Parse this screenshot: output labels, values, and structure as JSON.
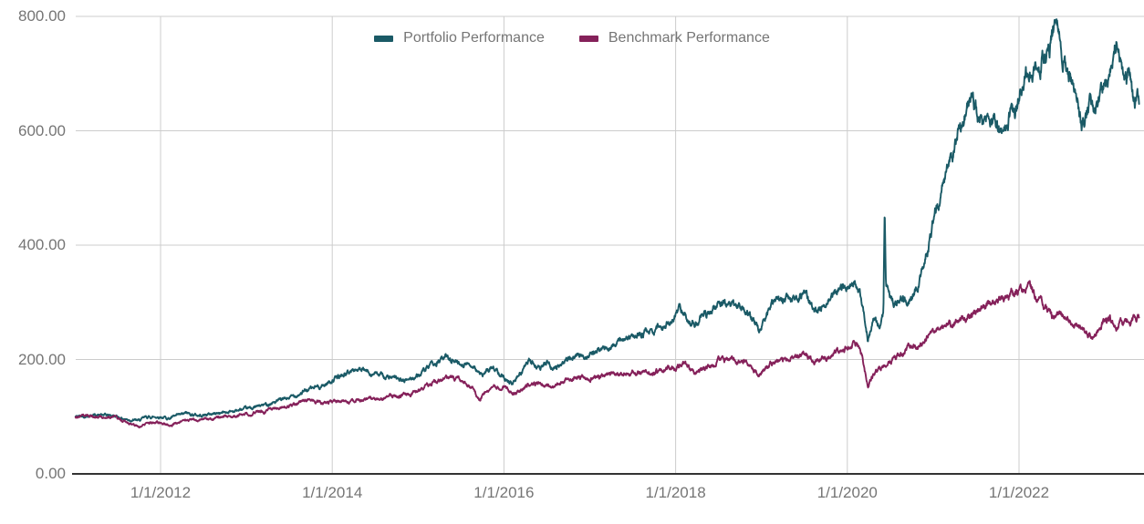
{
  "chart_data": {
    "type": "line",
    "title": "",
    "xlabel": "",
    "ylabel": "",
    "grid": true,
    "legend_position": "top-center",
    "background_color": "#ffffff",
    "grid_color": "#cccccc",
    "axis_line_color": "#333333",
    "text_color": "#757575",
    "y_axis": {
      "tick_labels": [
        "0.00",
        "200.00",
        "400.00",
        "600.00",
        "800.00"
      ],
      "tick_values": [
        0,
        200,
        400,
        600,
        800
      ],
      "range": [
        0,
        800
      ]
    },
    "x_axis": {
      "tick_labels": [
        "1/1/2012",
        "1/1/2014",
        "1/1/2016",
        "1/1/2018",
        "1/1/2020",
        "1/1/2022"
      ],
      "tick_years": [
        2012,
        2014,
        2016,
        2018,
        2020,
        2022
      ],
      "range_years": [
        2011.01,
        2023.4
      ]
    },
    "series": [
      {
        "name": "Portfolio Performance",
        "color": "#1A5A66",
        "keypoints": [
          [
            2011.01,
            100
          ],
          [
            2011.2,
            103
          ],
          [
            2011.45,
            102
          ],
          [
            2011.58,
            96
          ],
          [
            2011.75,
            93
          ],
          [
            2011.83,
            99
          ],
          [
            2012.0,
            100
          ],
          [
            2012.1,
            97
          ],
          [
            2012.3,
            106
          ],
          [
            2012.45,
            102
          ],
          [
            2012.6,
            105
          ],
          [
            2012.8,
            109
          ],
          [
            2013.0,
            113
          ],
          [
            2013.25,
            122
          ],
          [
            2013.5,
            133
          ],
          [
            2013.75,
            149
          ],
          [
            2013.9,
            155
          ],
          [
            2014.0,
            164
          ],
          [
            2014.27,
            183
          ],
          [
            2014.45,
            177
          ],
          [
            2014.7,
            167
          ],
          [
            2014.85,
            163
          ],
          [
            2015.0,
            172
          ],
          [
            2015.15,
            188
          ],
          [
            2015.33,
            205
          ],
          [
            2015.5,
            193
          ],
          [
            2015.65,
            190
          ],
          [
            2015.74,
            170
          ],
          [
            2015.85,
            186
          ],
          [
            2015.95,
            178
          ],
          [
            2016.1,
            157
          ],
          [
            2016.3,
            198
          ],
          [
            2016.42,
            185
          ],
          [
            2016.52,
            197
          ],
          [
            2016.57,
            184
          ],
          [
            2016.75,
            201
          ],
          [
            2016.95,
            207
          ],
          [
            2017.15,
            218
          ],
          [
            2017.4,
            235
          ],
          [
            2017.6,
            244
          ],
          [
            2017.8,
            255
          ],
          [
            2017.95,
            270
          ],
          [
            2018.05,
            288
          ],
          [
            2018.15,
            270
          ],
          [
            2018.22,
            262
          ],
          [
            2018.35,
            280
          ],
          [
            2018.55,
            300
          ],
          [
            2018.7,
            292
          ],
          [
            2018.8,
            296
          ],
          [
            2018.97,
            252
          ],
          [
            2019.15,
            300
          ],
          [
            2019.35,
            308
          ],
          [
            2019.5,
            316
          ],
          [
            2019.62,
            282
          ],
          [
            2019.8,
            310
          ],
          [
            2020.0,
            330
          ],
          [
            2020.1,
            336
          ],
          [
            2020.17,
            300
          ],
          [
            2020.24,
            234
          ],
          [
            2020.3,
            268
          ],
          [
            2020.38,
            258
          ],
          [
            2020.42,
            280
          ],
          [
            2020.435,
            465
          ],
          [
            2020.45,
            330
          ],
          [
            2020.55,
            295
          ],
          [
            2020.62,
            310
          ],
          [
            2020.7,
            300
          ],
          [
            2020.8,
            318
          ],
          [
            2020.88,
            360
          ],
          [
            2020.95,
            405
          ],
          [
            2021.05,
            470
          ],
          [
            2021.15,
            520
          ],
          [
            2021.25,
            570
          ],
          [
            2021.35,
            620
          ],
          [
            2021.42,
            660
          ],
          [
            2021.5,
            640
          ],
          [
            2021.58,
            600
          ],
          [
            2021.65,
            628
          ],
          [
            2021.72,
            610
          ],
          [
            2021.8,
            592
          ],
          [
            2021.88,
            630
          ],
          [
            2021.95,
            618
          ],
          [
            2022.0,
            650
          ],
          [
            2022.08,
            700
          ],
          [
            2022.15,
            690
          ],
          [
            2022.25,
            715
          ],
          [
            2022.35,
            742
          ],
          [
            2022.44,
            790
          ],
          [
            2022.52,
            730
          ],
          [
            2022.6,
            695
          ],
          [
            2022.68,
            650
          ],
          [
            2022.74,
            612
          ],
          [
            2022.82,
            650
          ],
          [
            2022.9,
            638
          ],
          [
            2022.98,
            672
          ],
          [
            2023.05,
            695
          ],
          [
            2023.12,
            750
          ],
          [
            2023.2,
            720
          ],
          [
            2023.28,
            692
          ],
          [
            2023.36,
            650
          ],
          [
            2023.4,
            655
          ]
        ]
      },
      {
        "name": "Benchmark Performance",
        "color": "#85215A",
        "keypoints": [
          [
            2011.01,
            100
          ],
          [
            2011.2,
            101
          ],
          [
            2011.45,
            99
          ],
          [
            2011.6,
            90
          ],
          [
            2011.75,
            83
          ],
          [
            2011.85,
            88
          ],
          [
            2011.95,
            91
          ],
          [
            2012.05,
            88
          ],
          [
            2012.12,
            84
          ],
          [
            2012.25,
            93
          ],
          [
            2012.4,
            96
          ],
          [
            2012.55,
            95
          ],
          [
            2012.7,
            99
          ],
          [
            2012.85,
            101
          ],
          [
            2013.0,
            105
          ],
          [
            2013.2,
            110
          ],
          [
            2013.42,
            116
          ],
          [
            2013.6,
            124
          ],
          [
            2013.71,
            131
          ],
          [
            2013.8,
            127
          ],
          [
            2013.95,
            124
          ],
          [
            2014.1,
            126
          ],
          [
            2014.27,
            129
          ],
          [
            2014.5,
            131
          ],
          [
            2014.7,
            135
          ],
          [
            2014.85,
            138
          ],
          [
            2015.0,
            144
          ],
          [
            2015.15,
            158
          ],
          [
            2015.32,
            171
          ],
          [
            2015.45,
            166
          ],
          [
            2015.6,
            158
          ],
          [
            2015.72,
            128
          ],
          [
            2015.8,
            148
          ],
          [
            2015.9,
            152
          ],
          [
            2016.0,
            153
          ],
          [
            2016.12,
            139
          ],
          [
            2016.3,
            158
          ],
          [
            2016.45,
            156
          ],
          [
            2016.55,
            152
          ],
          [
            2016.7,
            163
          ],
          [
            2016.85,
            167
          ],
          [
            2017.0,
            169
          ],
          [
            2017.2,
            173
          ],
          [
            2017.4,
            177
          ],
          [
            2017.6,
            178
          ],
          [
            2017.8,
            181
          ],
          [
            2018.0,
            187
          ],
          [
            2018.1,
            192
          ],
          [
            2018.22,
            176
          ],
          [
            2018.35,
            185
          ],
          [
            2018.55,
            202
          ],
          [
            2018.7,
            196
          ],
          [
            2018.8,
            199
          ],
          [
            2018.97,
            175
          ],
          [
            2019.15,
            196
          ],
          [
            2019.35,
            202
          ],
          [
            2019.5,
            207
          ],
          [
            2019.62,
            197
          ],
          [
            2019.8,
            205
          ],
          [
            2019.95,
            218
          ],
          [
            2020.1,
            228
          ],
          [
            2020.18,
            200
          ],
          [
            2020.24,
            152
          ],
          [
            2020.32,
            178
          ],
          [
            2020.4,
            188
          ],
          [
            2020.5,
            196
          ],
          [
            2020.6,
            205
          ],
          [
            2020.68,
            215
          ],
          [
            2020.75,
            226
          ],
          [
            2020.82,
            220
          ],
          [
            2020.9,
            232
          ],
          [
            2021.0,
            248
          ],
          [
            2021.15,
            258
          ],
          [
            2021.3,
            268
          ],
          [
            2021.45,
            280
          ],
          [
            2021.6,
            292
          ],
          [
            2021.75,
            300
          ],
          [
            2021.85,
            308
          ],
          [
            2021.95,
            316
          ],
          [
            2022.05,
            320
          ],
          [
            2022.12,
            327
          ],
          [
            2022.2,
            310
          ],
          [
            2022.31,
            292
          ],
          [
            2022.4,
            271
          ],
          [
            2022.48,
            282
          ],
          [
            2022.56,
            268
          ],
          [
            2022.65,
            258
          ],
          [
            2022.74,
            252
          ],
          [
            2022.84,
            240
          ],
          [
            2022.92,
            255
          ],
          [
            2022.99,
            263
          ],
          [
            2023.06,
            268
          ],
          [
            2023.12,
            256
          ],
          [
            2023.2,
            265
          ],
          [
            2023.28,
            271
          ],
          [
            2023.36,
            273
          ],
          [
            2023.4,
            276
          ]
        ]
      }
    ]
  }
}
